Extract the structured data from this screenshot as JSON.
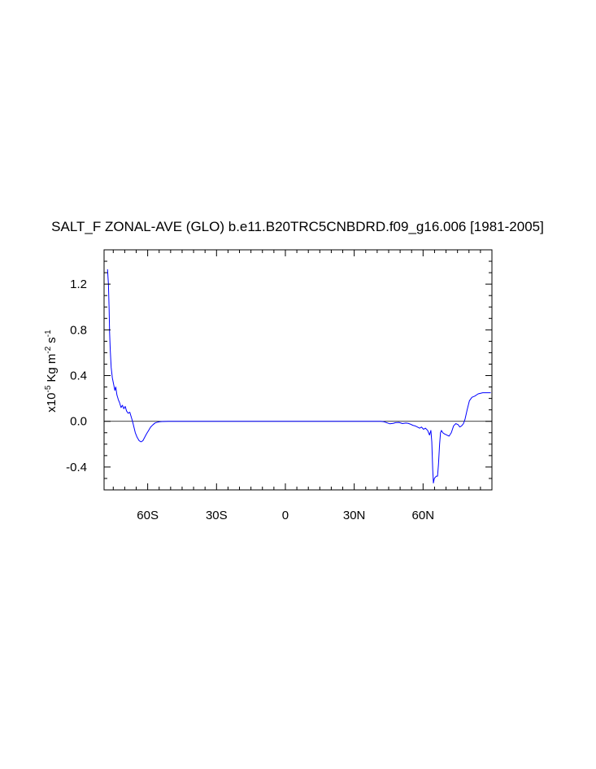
{
  "chart_data": {
    "type": "line",
    "title": "SALT_F ZONAL-AVE (GLO) b.e11.B20TRC5CNBDRD.f09_g16.006 [1981-2005]",
    "ylabel": {
      "prefix": "x10",
      "exp": "-5",
      "unit1": "Kg m",
      "exp2": "-2",
      "unit2": "s",
      "exp3": "-1"
    },
    "xlim": [
      -79,
      90
    ],
    "ylim": [
      -0.6,
      1.5
    ],
    "xticks": [
      {
        "value": -60,
        "label": "60S"
      },
      {
        "value": -30,
        "label": "30S"
      },
      {
        "value": 0,
        "label": "0"
      },
      {
        "value": 30,
        "label": "30N"
      },
      {
        "value": 60,
        "label": "60N"
      }
    ],
    "yticks": [
      {
        "value": 1.2,
        "label": "1.2"
      },
      {
        "value": 0.8,
        "label": "0.8"
      },
      {
        "value": 0.4,
        "label": "0.4"
      },
      {
        "value": 0.0,
        "label": "0.0"
      },
      {
        "value": -0.4,
        "label": "-0.4"
      }
    ],
    "reference_line": 0.0,
    "line_color": "#0000ff",
    "series": [
      {
        "x": [
          -77.5,
          -77.1,
          -76.8,
          -76.6,
          -76.3,
          -75.9,
          -75.4,
          -74.9,
          -74.3,
          -73.9,
          -73.4,
          -72.8,
          -72.2,
          -71.6,
          -71.0,
          -70.4,
          -69.8,
          -69.2,
          -68.5,
          -67.8,
          -67.2,
          -66.6,
          -66.0,
          -65.4,
          -64.6,
          -63.7,
          -62.9,
          -62.1,
          -61.3,
          -60.5,
          -59.6,
          -58.7,
          -57.7,
          -56.8,
          -55.8,
          -54.8,
          -53.8,
          -52.5,
          -51.0,
          -49.0,
          -45.0,
          -40.0,
          -30.0,
          -20.0,
          -10.0,
          0.0,
          10.0,
          20.0,
          30.0,
          35.0,
          40.0,
          41.5,
          43.0,
          44.5,
          45.5,
          47.0,
          48.0,
          49.5,
          51.0,
          52.5,
          53.5,
          54.5,
          55.5,
          56.5,
          57.5,
          58.5,
          59.3,
          60.2,
          61.0,
          62.0,
          62.8,
          63.4,
          63.8,
          64.2,
          64.5,
          64.9,
          65.3,
          65.8,
          66.3,
          66.7,
          67.2,
          67.6,
          68.0,
          68.6,
          69.3,
          70.3,
          71.3,
          72.3,
          73.3,
          74.3,
          75.3,
          76.0,
          76.8,
          77.6,
          78.3,
          79.2,
          80.2,
          81.3,
          82.5,
          84.0,
          86.0,
          89.5
        ],
        "y": [
          1.33,
          1.2,
          0.98,
          0.78,
          0.62,
          0.47,
          0.38,
          0.33,
          0.27,
          0.3,
          0.23,
          0.19,
          0.16,
          0.12,
          0.14,
          0.11,
          0.13,
          0.09,
          0.07,
          0.08,
          0.04,
          0.0,
          -0.05,
          -0.1,
          -0.14,
          -0.17,
          -0.18,
          -0.17,
          -0.14,
          -0.11,
          -0.08,
          -0.05,
          -0.03,
          -0.015,
          -0.008,
          -0.004,
          -0.002,
          -0.001,
          0.0,
          0.0,
          0.0,
          0.0,
          0.0,
          0.0,
          0.0,
          0.0,
          0.0,
          0.0,
          0.0,
          0.0,
          0.0,
          0.0,
          -0.004,
          -0.015,
          -0.022,
          -0.018,
          -0.012,
          -0.01,
          -0.02,
          -0.015,
          -0.018,
          -0.025,
          -0.035,
          -0.04,
          -0.05,
          -0.06,
          -0.05,
          -0.07,
          -0.06,
          -0.08,
          -0.12,
          -0.08,
          -0.18,
          -0.42,
          -0.54,
          -0.5,
          -0.49,
          -0.48,
          -0.48,
          -0.38,
          -0.2,
          -0.1,
          -0.08,
          -0.1,
          -0.11,
          -0.12,
          -0.13,
          -0.1,
          -0.04,
          -0.02,
          -0.03,
          -0.05,
          -0.04,
          -0.02,
          0.02,
          0.1,
          0.18,
          0.21,
          0.22,
          0.24,
          0.25,
          0.25
        ]
      }
    ]
  }
}
